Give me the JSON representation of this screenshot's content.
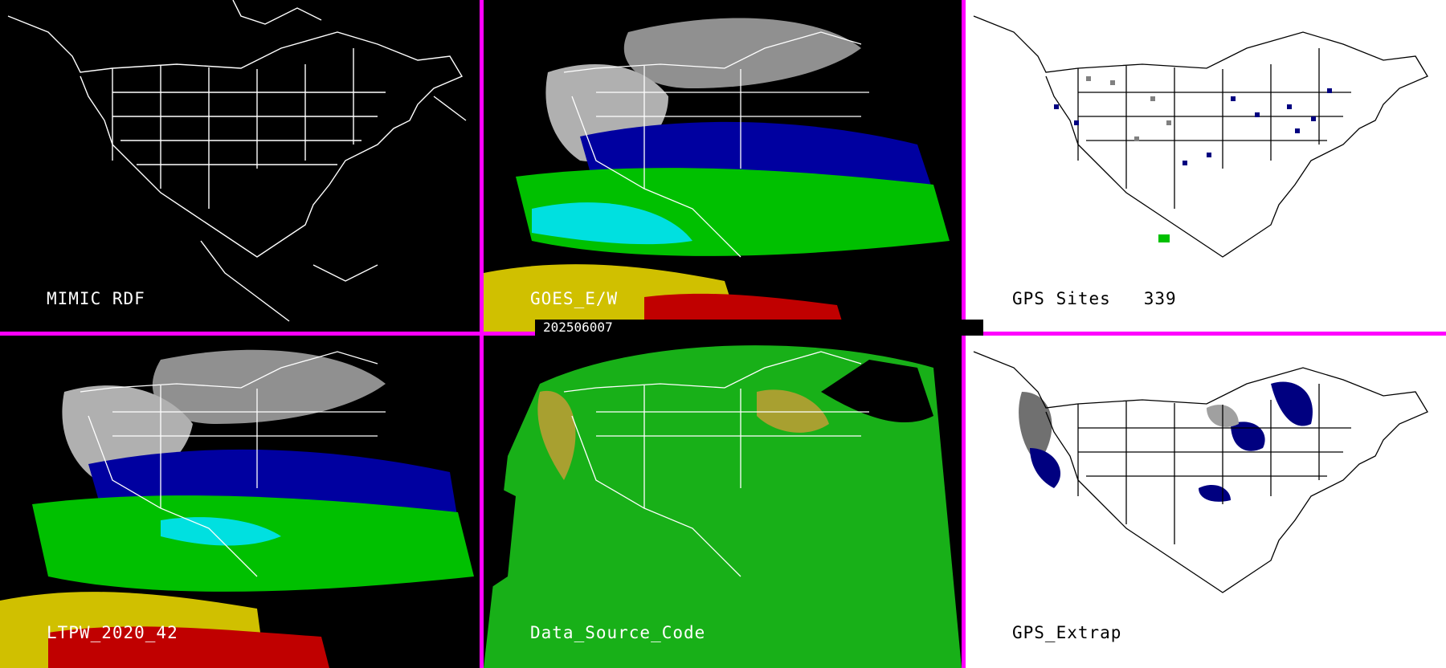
{
  "timestamp": "202506007",
  "panels": [
    {
      "label": "MIMIC RDF",
      "theme": "dark"
    },
    {
      "label": "GOES_E/W",
      "theme": "dark"
    },
    {
      "label": "GPS Sites   339",
      "theme": "light"
    },
    {
      "label": "LTPW_2020_42",
      "theme": "dark"
    },
    {
      "label": "Data_Source_Code",
      "theme": "dark"
    },
    {
      "label": "GPS_Extrap",
      "theme": "light"
    }
  ],
  "colors": {
    "separator": "#ff00ff",
    "background_dark": "#000000",
    "background_light": "#ffffff",
    "water_low": "#0000a0",
    "water_mid": "#00e0e0",
    "water_high": "#00c000",
    "water_very_high": "#d0c000",
    "water_extreme": "#c00000"
  }
}
